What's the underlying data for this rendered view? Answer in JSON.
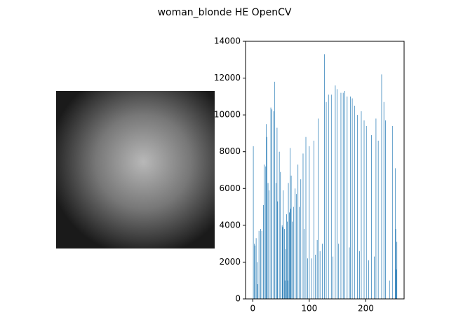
{
  "chart_data": {
    "type": "bar",
    "title": "woman_blonde HE OpenCV",
    "color": "#1f77b4",
    "x": [
      1,
      3,
      4,
      6,
      8,
      9,
      11,
      14,
      16,
      19,
      20,
      23,
      24,
      25,
      27,
      29,
      32,
      34,
      37,
      39,
      41,
      43,
      44,
      47,
      49,
      52,
      53,
      54,
      56,
      57,
      58,
      60,
      61,
      62,
      63,
      65,
      66,
      67,
      68,
      70,
      72,
      75,
      77,
      80,
      82,
      85,
      89,
      91,
      94,
      97,
      100,
      104,
      108,
      111,
      114,
      116,
      119,
      123,
      127,
      130,
      134,
      139,
      142,
      146,
      149,
      152,
      156,
      160,
      163,
      167,
      171,
      173,
      176,
      180,
      185,
      189,
      192,
      197,
      201,
      205,
      210,
      215,
      218,
      222,
      228,
      232,
      235,
      242,
      247,
      252,
      253,
      254,
      255
    ],
    "values": [
      8300,
      3000,
      2900,
      3300,
      2000,
      800,
      3700,
      3800,
      3700,
      5100,
      7300,
      7200,
      9500,
      8800,
      6300,
      5900,
      10400,
      10300,
      10200,
      11800,
      6300,
      9300,
      5300,
      8000,
      6900,
      4000,
      3900,
      5900,
      3800,
      1000,
      2700,
      4600,
      4200,
      1000,
      6300,
      4700,
      8200,
      4900,
      6700,
      4200,
      5000,
      6000,
      5700,
      7300,
      5000,
      6500,
      7900,
      3800,
      8800,
      2200,
      8300,
      2200,
      8600,
      2400,
      3200,
      9800,
      2600,
      3000,
      13300,
      10700,
      11100,
      11100,
      2300,
      11600,
      11400,
      3000,
      11200,
      11200,
      11300,
      11000,
      2800,
      11000,
      10900,
      10500,
      10000,
      2600,
      10200,
      9700,
      9400,
      2100,
      8900,
      2300,
      9800,
      8600,
      12200,
      10700,
      9700,
      1000,
      9400,
      7100,
      3800,
      1600,
      3100
    ],
    "xlim": [
      -12.75,
      267.75
    ],
    "xticks": [
      0,
      100,
      200
    ],
    "ylim": [
      0,
      14000
    ],
    "yticks": [
      0,
      2000,
      4000,
      6000,
      8000,
      10000,
      12000,
      14000
    ]
  }
}
